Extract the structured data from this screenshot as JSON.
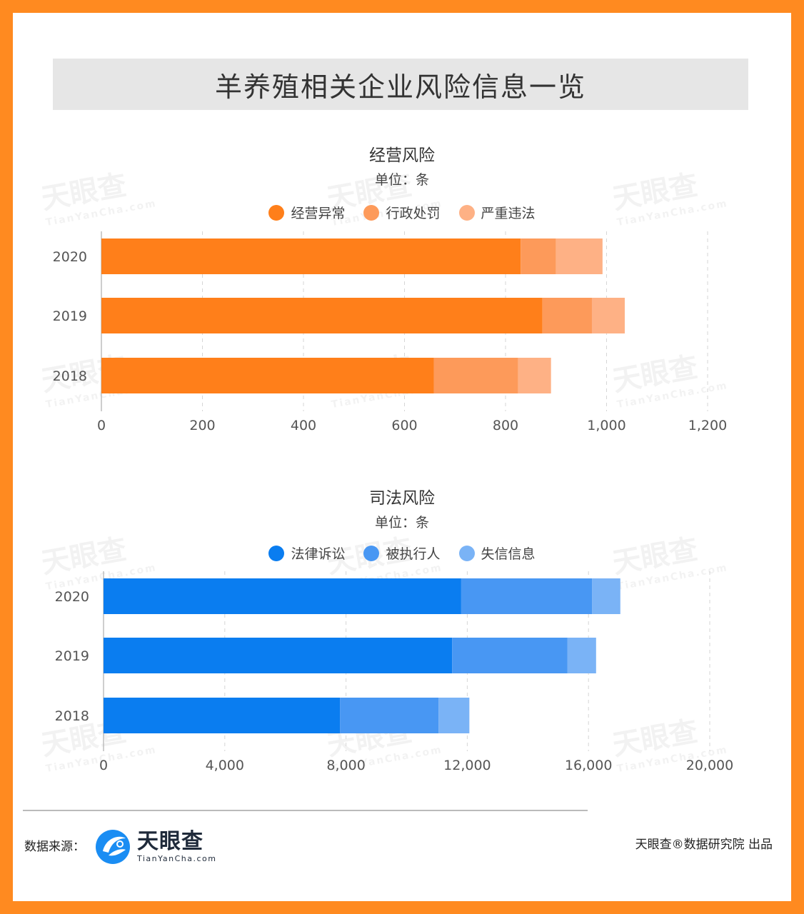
{
  "header": {
    "title": "羊养殖相关企业风险信息一览"
  },
  "watermark": {
    "cn": "天眼查",
    "en": "TianYanCha.com"
  },
  "charts": {
    "operating": {
      "title": "经营风险",
      "unit": "单位：条",
      "legend": [
        {
          "label": "经营异常",
          "color": "#ff7f1a"
        },
        {
          "label": "行政处罚",
          "color": "#fd9a5a"
        },
        {
          "label": "严重违法",
          "color": "#feb185"
        }
      ],
      "tick_labels": [
        "0",
        "200",
        "400",
        "600",
        "800",
        "1,000",
        "1,200"
      ]
    },
    "judicial": {
      "title": "司法风险",
      "unit": "单位：条",
      "legend": [
        {
          "label": "法律诉讼",
          "color": "#0a7df0"
        },
        {
          "label": "被执行人",
          "color": "#4897f3"
        },
        {
          "label": "失信信息",
          "color": "#7ab3f6"
        }
      ],
      "tick_labels": [
        "0",
        "4,000",
        "8,000",
        "12,000",
        "16,000",
        "20,000"
      ]
    }
  },
  "chart_data": [
    {
      "type": "bar",
      "orientation": "horizontal",
      "stacked": true,
      "title": "经营风险",
      "subtitle": "单位：条",
      "categories": [
        "2020",
        "2019",
        "2018"
      ],
      "series": [
        {
          "name": "经营异常",
          "values": [
            830,
            873,
            658
          ]
        },
        {
          "name": "行政处罚",
          "values": [
            70,
            98,
            167
          ]
        },
        {
          "name": "严重违法",
          "values": [
            92,
            65,
            65
          ]
        }
      ],
      "xlim": [
        0,
        1200
      ],
      "xticks": [
        0,
        200,
        400,
        600,
        800,
        1000,
        1200
      ],
      "grid": true,
      "legend_position": "top"
    },
    {
      "type": "bar",
      "orientation": "horizontal",
      "stacked": true,
      "title": "司法风险",
      "subtitle": "单位：条",
      "categories": [
        "2020",
        "2019",
        "2018"
      ],
      "series": [
        {
          "name": "法律诉讼",
          "values": [
            11800,
            11500,
            7800
          ]
        },
        {
          "name": "被执行人",
          "values": [
            4320,
            3800,
            3250
          ]
        },
        {
          "name": "失信信息",
          "values": [
            930,
            950,
            1020
          ]
        }
      ],
      "xlim": [
        0,
        20000
      ],
      "xticks": [
        0,
        4000,
        8000,
        12000,
        16000,
        20000
      ],
      "grid": true,
      "legend_position": "top"
    }
  ],
  "footer": {
    "source_label": "数据来源：",
    "logo_cn": "天眼查",
    "logo_en": "TianYanCha.com",
    "credit": "天眼查®数据研究院 出品"
  }
}
